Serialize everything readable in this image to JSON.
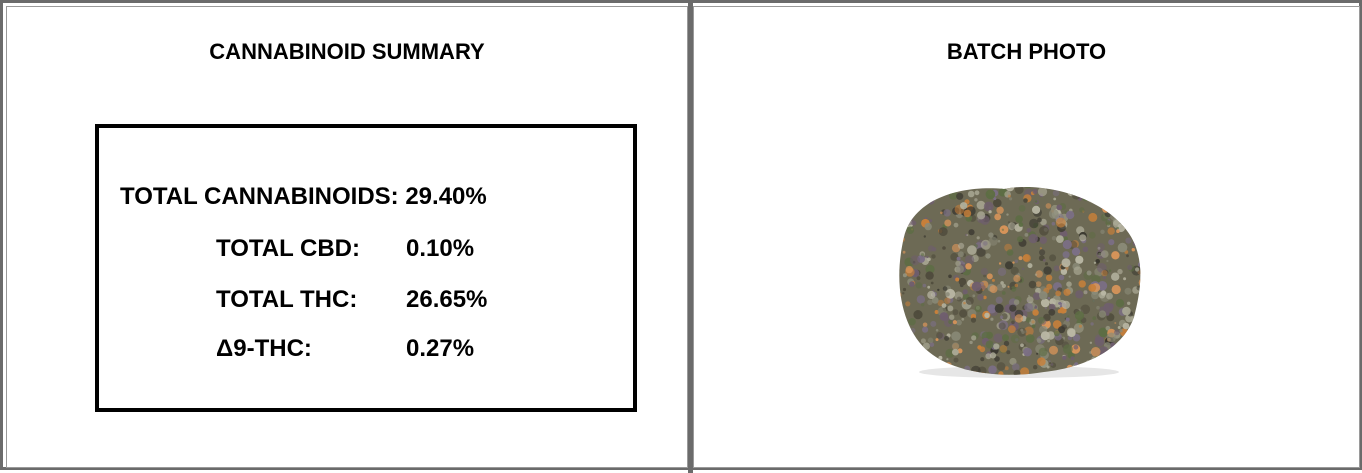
{
  "left_panel": {
    "title": "CANNABINOID SUMMARY",
    "total_line": "TOTAL CANNABINOIDS: 29.40%",
    "rows": [
      {
        "label": "TOTAL CBD:",
        "value": "0.10%"
      },
      {
        "label": "TOTAL THC:",
        "value": "26.65%"
      },
      {
        "label": "Δ9-THC:",
        "value": "0.27%"
      }
    ]
  },
  "right_panel": {
    "title": "BATCH PHOTO"
  }
}
